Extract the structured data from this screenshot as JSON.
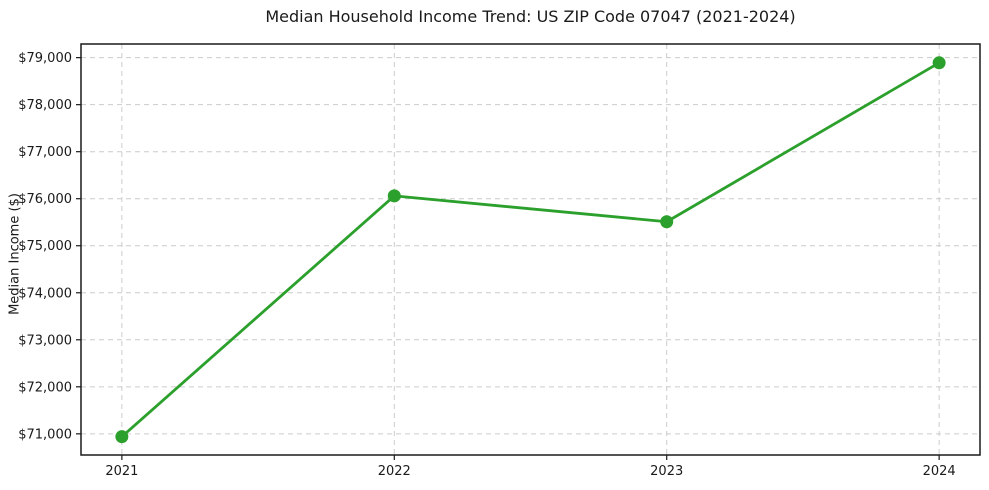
{
  "chart_data": {
    "type": "line",
    "title": "Median Household Income Trend: US ZIP Code 07047 (2021-2024)",
    "xlabel": "",
    "ylabel": "Median Income ($)",
    "x": [
      2021,
      2022,
      2023,
      2024
    ],
    "xtick_labels": [
      "2021",
      "2022",
      "2023",
      "2024"
    ],
    "series": [
      {
        "name": "Median Household Income",
        "values": [
          70940,
          76060,
          75510,
          78890
        ]
      }
    ],
    "ytick_values": [
      71000,
      72000,
      73000,
      74000,
      75000,
      76000,
      77000,
      78000,
      79000
    ],
    "ytick_labels": [
      "$71,000",
      "$72,000",
      "$73,000",
      "$74,000",
      "$75,000",
      "$76,000",
      "$77,000",
      "$78,000",
      "$79,000"
    ],
    "xlim": [
      2020.85,
      2024.15
    ],
    "ylim": [
      70550,
      79290
    ],
    "grid": true,
    "grid_style": "dashed",
    "legend_position": "none",
    "line_color": "#2ca02c",
    "marker": "circle",
    "grid_color": "#cccccc",
    "spine_color": "#1a1a1a",
    "background_color": "#ffffff"
  }
}
